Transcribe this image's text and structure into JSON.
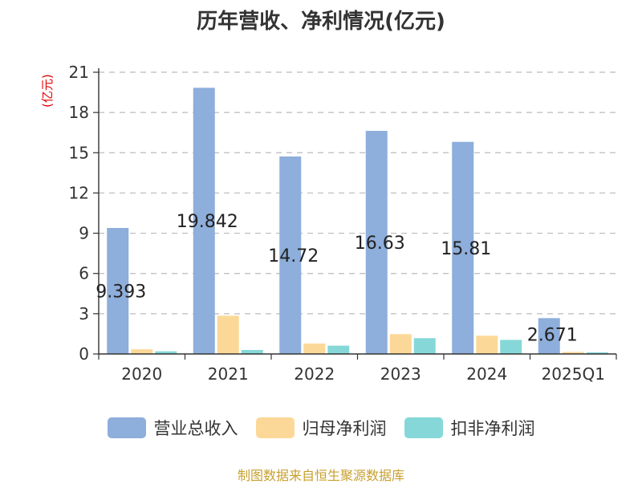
{
  "title": "历年营收、净利情况(亿元)",
  "unit_label": "(亿元)",
  "source": "制图数据来自恒生聚源数据库",
  "chart_data": {
    "type": "bar",
    "categories": [
      "2020",
      "2021",
      "2022",
      "2023",
      "2024",
      "2025Q1"
    ],
    "series": [
      {
        "name": "营业总收入",
        "color": "#8eaedb",
        "values": [
          9.393,
          19.842,
          14.72,
          16.63,
          15.81,
          2.671
        ]
      },
      {
        "name": "归母净利润",
        "color": "#fcd898",
        "values": [
          0.35,
          2.85,
          0.78,
          1.48,
          1.36,
          0.15
        ]
      },
      {
        "name": "扣非净利润",
        "color": "#86d8d8",
        "values": [
          0.2,
          0.3,
          0.62,
          1.18,
          1.05,
          0.12
        ]
      }
    ],
    "data_labels": [
      "9.393",
      "19.842",
      "14.72",
      "16.63",
      "15.81",
      "2.671"
    ],
    "yticks": [
      0,
      3,
      6,
      9,
      12,
      15,
      18,
      21
    ],
    "ylim": [
      0,
      21
    ],
    "grid": "horizontal-dashed",
    "legend_position": "bottom"
  }
}
